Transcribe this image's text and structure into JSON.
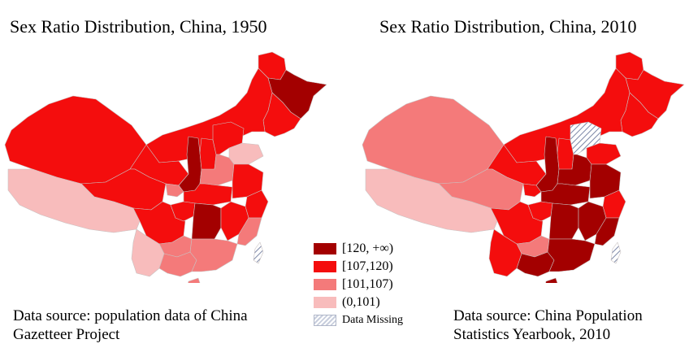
{
  "maps": [
    {
      "title": "Sex Ratio Distribution, China, 1950",
      "source_lines": [
        "Data source: population data of China",
        "Gazetteer Project"
      ],
      "fills": {
        "northeast_top": "level_107_120",
        "heilongjiang_core": "level_120_plus",
        "jilin_liaoning": "level_107_120",
        "inner_mongolia": "level_107_120",
        "xinjiang": "level_107_120",
        "gansu": "level_107_120",
        "qinghai": "level_107_120",
        "tibet": "level_0_101",
        "sichuan": "level_107_120",
        "shaanxi": "level_120_plus",
        "ningxia": "level_101_107",
        "shanxi": "level_107_120",
        "hebei": "level_107_120",
        "shandong": "level_0_101",
        "henan": "level_101_107",
        "hubei": "level_107_120",
        "hunan": "level_120_plus",
        "anhui_jiangsu": "level_107_120",
        "zhejiang": "level_107_120",
        "jiangxi": "level_107_120",
        "fujian": "level_101_107",
        "guangdong": "level_101_107",
        "guangxi": "level_101_107",
        "guizhou": "level_101_107",
        "yunnan": "level_0_101",
        "chongqing": "level_107_120",
        "hainan": "level_101_107",
        "taiwan": "missing"
      }
    },
    {
      "title": "Sex Ratio Distribution, China, 2010",
      "source_lines": [
        "Data source: China Population",
        "Statistics Yearbook, 2010"
      ],
      "fills": {
        "northeast_top": "level_107_120",
        "heilongjiang_core": "level_107_120",
        "jilin_liaoning": "level_107_120",
        "inner_mongolia": "level_107_120",
        "xinjiang": "level_101_107",
        "gansu": "level_107_120",
        "qinghai": "level_101_107",
        "tibet": "level_0_101",
        "sichuan": "level_107_120",
        "shaanxi": "level_120_plus",
        "ningxia": "level_107_120",
        "shanxi": "level_107_120",
        "hebei": "missing",
        "shandong": "level_107_120",
        "henan": "level_120_plus",
        "hubei": "level_120_plus",
        "hunan": "level_120_plus",
        "anhui_jiangsu": "level_120_plus",
        "zhejiang": "level_107_120",
        "jiangxi": "level_120_plus",
        "fujian": "level_120_plus",
        "guangdong": "level_120_plus",
        "guangxi": "level_120_plus",
        "guizhou": "level_101_107",
        "yunnan": "level_107_120",
        "chongqing": "level_107_120",
        "hainan": "level_120_plus",
        "taiwan": "missing"
      }
    }
  ],
  "legend": [
    {
      "key": "level_120_plus",
      "label": "[120, +∞)",
      "color": "#a30000"
    },
    {
      "key": "level_107_120",
      "label": "[107,120)",
      "color": "#f40d0d"
    },
    {
      "key": "level_101_107",
      "label": "[101,107)",
      "color": "#f47a7a"
    },
    {
      "key": "level_0_101",
      "label": "(0,101)",
      "color": "#f8bcbc"
    },
    {
      "key": "missing",
      "label": "Data Missing",
      "color": "#c8cedd"
    }
  ]
}
